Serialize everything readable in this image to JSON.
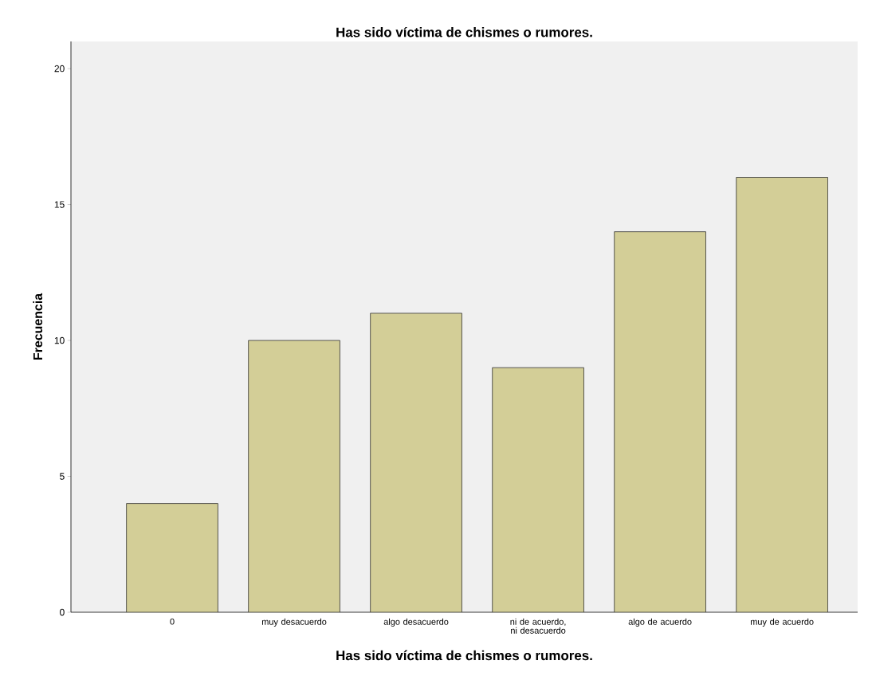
{
  "chart_data": {
    "type": "bar",
    "title": "Has sido víctima de chismes o rumores.",
    "xlabel": "Has sido víctima de chismes o rumores.",
    "ylabel": "Frecuencia",
    "categories": [
      "0",
      "muy desacuerdo",
      "algo desacuerdo",
      "ni de acuerdo, ni desacuerdo",
      "algo de acuerdo",
      "muy de acuerdo"
    ],
    "values": [
      4,
      10,
      11,
      9,
      14,
      16
    ],
    "color": "#d3ce97",
    "ylim": [
      0,
      21
    ],
    "yticks": [
      0,
      5,
      10,
      15,
      20
    ]
  }
}
